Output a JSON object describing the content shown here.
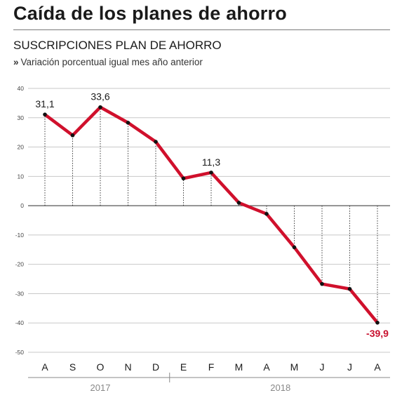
{
  "title": "Caída de los planes de ahorro",
  "subtitle": "SUSCRIPCIONES PLAN DE AHORRO",
  "note_marker": "»",
  "note": "Variación porcentual igual mes año anterior",
  "chart_data": {
    "type": "line",
    "categories": [
      "A",
      "S",
      "O",
      "N",
      "D",
      "E",
      "F",
      "M",
      "A",
      "M",
      "J",
      "J",
      "A"
    ],
    "values": [
      31.1,
      24.0,
      33.6,
      28.3,
      21.8,
      9.3,
      11.3,
      1.0,
      -2.8,
      -14.2,
      -26.7,
      -28.4,
      -39.9
    ],
    "labels": [
      {
        "index": 0,
        "text": "31,1"
      },
      {
        "index": 2,
        "text": "33,6"
      },
      {
        "index": 6,
        "text": "11,3"
      },
      {
        "index": 12,
        "text": "-39,9"
      }
    ],
    "year_groups": [
      {
        "label": "2017",
        "from": 0,
        "to": 4
      },
      {
        "label": "2018",
        "from": 5,
        "to": 12
      }
    ],
    "yticks": [
      40,
      30,
      20,
      10,
      0,
      -10,
      -20,
      -30,
      -40,
      -50
    ],
    "ylim": [
      -50,
      40
    ],
    "grid": true,
    "colors": {
      "line": "#d0102c",
      "grid": "#c8c8c8",
      "zero": "#555555",
      "highlight_label": "#c8102e"
    }
  }
}
